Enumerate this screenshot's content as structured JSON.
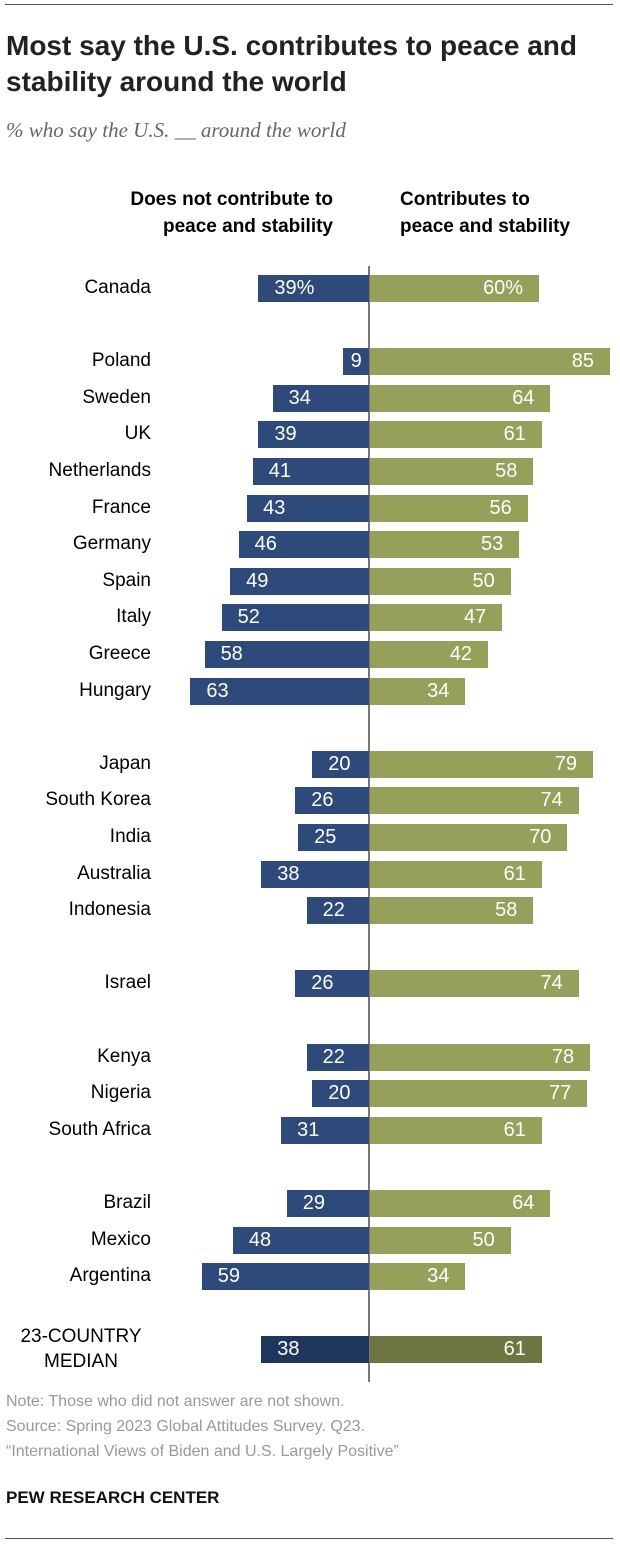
{
  "title": "Most say the U.S. contributes to peace and stability around the world",
  "subtitle": "% who say the U.S. __ around the world",
  "chart_data": {
    "type": "bar",
    "orientation": "horizontal-diverging",
    "title": "Most say the U.S. contributes to peace and stability around the world",
    "subtitle": "% who say the U.S. __ around the world",
    "series": [
      {
        "name": "Does not contribute to peace and stability",
        "color": "#2d4a7a",
        "median_color": "#1f365c"
      },
      {
        "name": "Contributes to peace and stability",
        "color": "#96a05a",
        "median_color": "#6e7540"
      }
    ],
    "rows": [
      {
        "label": "Canada",
        "neg": 39,
        "pos": 60,
        "group": 0,
        "percent": true
      },
      {
        "label": "Poland",
        "neg": 9,
        "pos": 85,
        "group": 1
      },
      {
        "label": "Sweden",
        "neg": 34,
        "pos": 64,
        "group": 1
      },
      {
        "label": "UK",
        "neg": 39,
        "pos": 61,
        "group": 1
      },
      {
        "label": "Netherlands",
        "neg": 41,
        "pos": 58,
        "group": 1
      },
      {
        "label": "France",
        "neg": 43,
        "pos": 56,
        "group": 1
      },
      {
        "label": "Germany",
        "neg": 46,
        "pos": 53,
        "group": 1
      },
      {
        "label": "Spain",
        "neg": 49,
        "pos": 50,
        "group": 1
      },
      {
        "label": "Italy",
        "neg": 52,
        "pos": 47,
        "group": 1
      },
      {
        "label": "Greece",
        "neg": 58,
        "pos": 42,
        "group": 1
      },
      {
        "label": "Hungary",
        "neg": 63,
        "pos": 34,
        "group": 1
      },
      {
        "label": "Japan",
        "neg": 20,
        "pos": 79,
        "group": 2
      },
      {
        "label": "South Korea",
        "neg": 26,
        "pos": 74,
        "group": 2
      },
      {
        "label": "India",
        "neg": 25,
        "pos": 70,
        "group": 2
      },
      {
        "label": "Australia",
        "neg": 38,
        "pos": 61,
        "group": 2
      },
      {
        "label": "Indonesia",
        "neg": 22,
        "pos": 58,
        "group": 2
      },
      {
        "label": "Israel",
        "neg": 26,
        "pos": 74,
        "group": 3
      },
      {
        "label": "Kenya",
        "neg": 22,
        "pos": 78,
        "group": 4
      },
      {
        "label": "Nigeria",
        "neg": 20,
        "pos": 77,
        "group": 4
      },
      {
        "label": "South Africa",
        "neg": 31,
        "pos": 61,
        "group": 4
      },
      {
        "label": "Brazil",
        "neg": 29,
        "pos": 64,
        "group": 5
      },
      {
        "label": "Mexico",
        "neg": 48,
        "pos": 50,
        "group": 5
      },
      {
        "label": "Argentina",
        "neg": 59,
        "pos": 34,
        "group": 5
      },
      {
        "label": "23-COUNTRY MEDIAN",
        "neg": 38,
        "pos": 61,
        "group": 6,
        "median": true
      }
    ]
  },
  "headers": {
    "left": "Does not contribute to peace and stability",
    "right": "Contributes to peace and stability"
  },
  "footer": {
    "note": "Note: Those who did not answer are not shown.",
    "source": "Source: Spring 2023 Global Attitudes Survey. Q23.",
    "report": "“International Views of Biden and U.S. Largely Positive”",
    "brand": "PEW RESEARCH CENTER"
  }
}
